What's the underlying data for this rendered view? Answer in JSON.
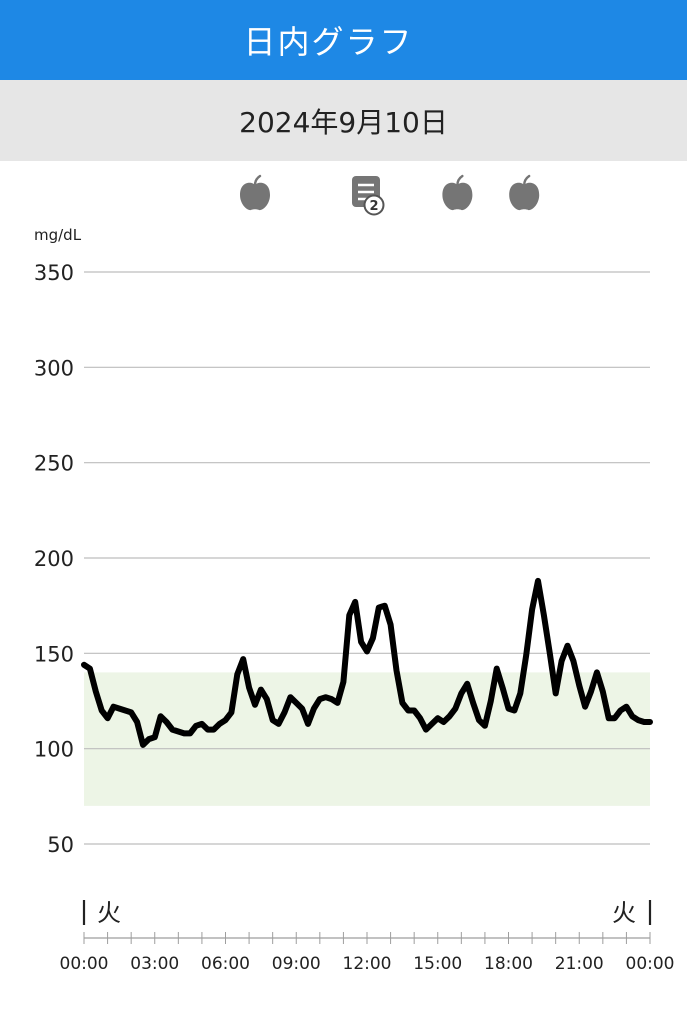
{
  "header": {
    "title": "日内グラフ"
  },
  "date_label": "2024年9月10日",
  "colors": {
    "header_bg": "#1e88e5",
    "target_band": "#edf5e6",
    "line": "#000000",
    "event_icon": "#757575"
  },
  "events": [
    {
      "icon": "apple-icon",
      "time": "07:15"
    },
    {
      "icon": "note-icon",
      "time": "12:00",
      "count": "2"
    },
    {
      "icon": "apple-icon",
      "time": "15:50"
    },
    {
      "icon": "apple-icon",
      "time": "18:40"
    }
  ],
  "chart_data": {
    "type": "line",
    "ylabel": "mg/dL",
    "ylim": [
      30,
      350
    ],
    "yticks": [
      50,
      100,
      150,
      200,
      250,
      300,
      350
    ],
    "target_range": [
      70,
      140
    ],
    "x_range_hours": [
      0,
      24
    ],
    "xticks": [
      "00:00",
      "03:00",
      "06:00",
      "09:00",
      "12:00",
      "15:00",
      "18:00",
      "21:00",
      "00:00"
    ],
    "day_labels": {
      "start": "火",
      "end": "火"
    },
    "grid": true,
    "series": [
      {
        "x": [
          0,
          0.25,
          0.5,
          0.75,
          1.0,
          1.25,
          1.5,
          1.75,
          2.0,
          2.25,
          2.5,
          2.75,
          3.0,
          3.25,
          3.5,
          3.75,
          4.0,
          4.25,
          4.5,
          4.75,
          5.0,
          5.25,
          5.5,
          5.75,
          6.0,
          6.25,
          6.5,
          6.75,
          7.0,
          7.25,
          7.5,
          7.75,
          8.0,
          8.25,
          8.5,
          8.75,
          9.0,
          9.25,
          9.5,
          9.75,
          10.0,
          10.25,
          10.5,
          10.75,
          11.0,
          11.25,
          11.5,
          11.75,
          12.0,
          12.25,
          12.5,
          12.75,
          13.0,
          13.25,
          13.5,
          13.75,
          14.0,
          14.25,
          14.5,
          14.75,
          15.0,
          15.25,
          15.5,
          15.75,
          16.0,
          16.25,
          16.5,
          16.75,
          17.0,
          17.25,
          17.5,
          17.75,
          18.0,
          18.25,
          18.5,
          18.75,
          19.0,
          19.25,
          19.5,
          19.75,
          20.0,
          20.25,
          20.5,
          20.75,
          21.0,
          21.25,
          21.5,
          21.75,
          22.0,
          22.25,
          22.5,
          22.75,
          23.0,
          23.25,
          23.5,
          23.75,
          24.0
        ],
        "y": [
          144,
          142,
          130,
          120,
          116,
          122,
          121,
          120,
          119,
          114,
          102,
          105,
          106,
          117,
          114,
          110,
          109,
          108,
          108,
          112,
          113,
          110,
          110,
          113,
          115,
          119,
          139,
          147,
          132,
          123,
          131,
          126,
          115,
          113,
          119,
          127,
          124,
          121,
          113,
          121,
          126,
          127,
          126,
          124,
          135,
          170,
          177,
          156,
          151,
          158,
          174,
          175,
          165,
          141,
          124,
          120,
          120,
          116,
          110,
          113,
          116,
          114,
          117,
          121,
          129,
          134,
          124,
          115,
          112,
          125,
          142,
          132,
          121,
          120,
          129,
          149,
          173,
          188,
          170,
          150,
          129,
          146,
          154,
          146,
          133,
          122,
          130,
          140,
          130,
          116,
          116,
          120,
          122,
          117,
          115,
          114,
          114
        ]
      }
    ]
  }
}
